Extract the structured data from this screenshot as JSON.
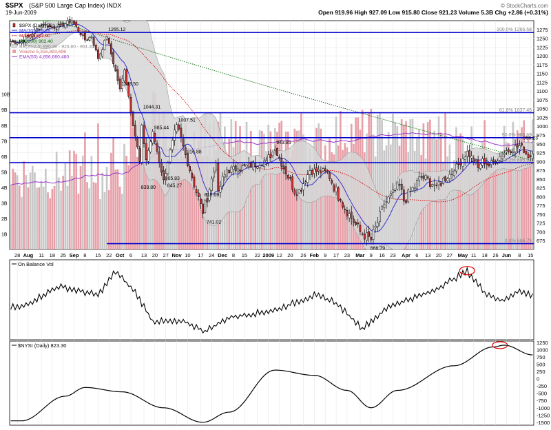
{
  "header": {
    "symbol": "$SPX",
    "description": "(S&P 500 Large Cap Index) INDX",
    "date": "19-Jun-2009",
    "quote": "Open 919.96  High 927.09  Low 915.80  Close 921.23  Volume 5.3B  Chg +2.86 (+0.31%)",
    "credit": "© StockCharts.com",
    "quote_up_color": "#0000ff"
  },
  "legend": [
    {
      "text": "$SPX (Daily) 921.23",
      "color": "#000000",
      "marker": "candle"
    },
    {
      "text": "MA(10) 929.78",
      "color": "#3333cc",
      "marker": "line"
    },
    {
      "text": "MA(50) 897.90",
      "color": "#cc0000",
      "marker": "dotted"
    },
    {
      "text": "MA(200) 902.40",
      "color": "#006600",
      "marker": "dotted"
    },
    {
      "text": "BB(20,2.0) 890.30 - 925.80 - 961.31",
      "color": "#888888",
      "marker": "band"
    },
    {
      "text": "Volume 5,316,893,696",
      "color": "#cc6666",
      "marker": "bar"
    },
    {
      "text": "EMA(50) 4,856,660,480",
      "color": "#9933cc",
      "marker": "line"
    }
  ],
  "colors": {
    "up_candle": "#ffffff",
    "down_candle": "#cc3333",
    "bb_fill": "#d6d6d6",
    "fib_line": "#0000cc",
    "vol_up": "#c8c8c8",
    "vol_down": "#e8a0a8",
    "ema_vol": "#9933cc",
    "ma10": "#3333cc",
    "ma50": "#cc0000",
    "ma200": "#006600",
    "obv": "#000000",
    "nysi": "#000000",
    "highlight": "#dd0000"
  },
  "chart_data": [
    {
      "type": "candlestick",
      "title": "$SPX (Daily) 921.23",
      "ylim": [
        650,
        1300
      ],
      "yticks": [
        675,
        700,
        725,
        750,
        775,
        800,
        825,
        850,
        875,
        900,
        925,
        950,
        975,
        1000,
        1025,
        1050,
        1075,
        1100,
        1125,
        1150,
        1175,
        1200,
        1225,
        1250,
        1275
      ],
      "volume_ticks": [
        "1B",
        "2B",
        "3B",
        "4B",
        "5B",
        "6B",
        "7B",
        "8B",
        "9B",
        "10B"
      ],
      "x_tick_labels": [
        "28",
        "Aug",
        "11",
        "18",
        "25",
        "Sep",
        "8",
        "15",
        "22",
        "Oct",
        "6",
        "13",
        "20",
        "27",
        "Nov",
        "10",
        "17",
        "24",
        "Dec",
        "8",
        "15",
        "22",
        "2009",
        "12",
        "20",
        "26",
        "Feb",
        "9",
        "17",
        "23",
        "Mar",
        "9",
        "16",
        "23",
        "Apr",
        "6",
        "13",
        "20",
        "27",
        "May",
        "11",
        "18",
        "26",
        "Jun",
        "8",
        "15"
      ],
      "anchors": [
        {
          "date": "2008-07-28",
          "close": 1240
        },
        {
          "date": "2008-08-11",
          "close": 1290
        },
        {
          "date": "2008-08-18",
          "close": 1278
        },
        {
          "date": "2008-08-28",
          "close": 1300
        },
        {
          "date": "2008-09-05",
          "close": 1245
        },
        {
          "date": "2008-09-10",
          "close": 1255
        },
        {
          "date": "2008-09-15",
          "close": 1192
        },
        {
          "date": "2008-09-19",
          "close": 1255
        },
        {
          "date": "2008-09-29",
          "close": 1106
        },
        {
          "date": "2008-10-01",
          "close": 1160
        },
        {
          "date": "2008-10-10",
          "close": 900
        },
        {
          "date": "2008-10-13",
          "close": 1003
        },
        {
          "date": "2008-10-15",
          "close": 905
        },
        {
          "date": "2008-10-20",
          "close": 985
        },
        {
          "date": "2008-10-27",
          "close": 848
        },
        {
          "date": "2008-11-04",
          "close": 1005
        },
        {
          "date": "2008-11-10",
          "close": 919
        },
        {
          "date": "2008-11-20",
          "close": 752
        },
        {
          "date": "2008-11-28",
          "close": 896
        },
        {
          "date": "2008-12-01",
          "close": 816
        },
        {
          "date": "2008-12-05",
          "close": 876
        },
        {
          "date": "2008-12-12",
          "close": 879
        },
        {
          "date": "2008-12-31",
          "close": 903
        },
        {
          "date": "2009-01-06",
          "close": 935
        },
        {
          "date": "2009-01-20",
          "close": 805
        },
        {
          "date": "2009-01-28",
          "close": 874
        },
        {
          "date": "2009-02-09",
          "close": 869
        },
        {
          "date": "2009-02-17",
          "close": 789
        },
        {
          "date": "2009-03-02",
          "close": 700
        },
        {
          "date": "2009-03-09",
          "close": 677
        },
        {
          "date": "2009-03-17",
          "close": 778
        },
        {
          "date": "2009-03-26",
          "close": 832
        },
        {
          "date": "2009-03-30",
          "close": 787
        },
        {
          "date": "2009-04-09",
          "close": 856
        },
        {
          "date": "2009-04-20",
          "close": 832
        },
        {
          "date": "2009-04-30",
          "close": 873
        },
        {
          "date": "2009-05-08",
          "close": 929
        },
        {
          "date": "2009-05-15",
          "close": 882
        },
        {
          "date": "2009-05-19",
          "close": 908
        },
        {
          "date": "2009-05-22",
          "close": 887
        },
        {
          "date": "2009-06-03",
          "close": 931
        },
        {
          "date": "2009-06-12",
          "close": 946
        },
        {
          "date": "2009-06-17",
          "close": 911
        },
        {
          "date": "2009-06-19",
          "close": 921.23
        }
      ],
      "price_annotations": [
        {
          "label": "1265.12",
          "date": "2008-09-19",
          "value": 1265.12,
          "pos": "above"
        },
        {
          "label": "1133.50",
          "date": "2008-09-29",
          "value": 1133.5,
          "pos": "below"
        },
        {
          "label": "1044.31",
          "date": "2008-10-13",
          "value": 1044.31,
          "pos": "above"
        },
        {
          "label": "985.44",
          "date": "2008-10-20",
          "value": 985.44,
          "pos": "above"
        },
        {
          "label": "1007.51",
          "date": "2008-11-04",
          "value": 1007.51,
          "pos": "above"
        },
        {
          "label": "916.88",
          "date": "2008-11-10",
          "value": 916.88,
          "pos": "above"
        },
        {
          "label": "839.80",
          "date": "2008-10-10",
          "value": 839.8,
          "pos": "below"
        },
        {
          "label": "865.83",
          "date": "2008-10-27",
          "value": 865.83,
          "pos": "below"
        },
        {
          "label": "845.27",
          "date": "2008-10-28",
          "value": 845.27,
          "pos": "below"
        },
        {
          "label": "818.69",
          "date": "2008-11-20",
          "value": 818.69,
          "pos": "below"
        },
        {
          "label": "741.02",
          "date": "2008-11-21",
          "value": 741.02,
          "pos": "below"
        },
        {
          "label": "943.85",
          "date": "2009-01-06",
          "value": 943.85,
          "pos": "above"
        },
        {
          "label": "666.79",
          "date": "2009-03-06",
          "value": 666.79,
          "pos": "below"
        },
        {
          "label": "956.23",
          "date": "2009-06-12",
          "value": 956.23,
          "pos": "above"
        }
      ],
      "horizontal_lines": [
        {
          "value": 1266.5
        },
        {
          "value": 1038.5
        },
        {
          "value": 967.5
        },
        {
          "value": 896.5
        },
        {
          "value": 666.5
        }
      ],
      "fib_labels": [
        {
          "text": "100.0% 1266.58",
          "value": 1266.58
        },
        {
          "text": "61.8% 1037.45",
          "value": 1037.45
        },
        {
          "text": "50.0% 966.69",
          "value": 966.69
        },
        {
          "text": "38.2% 895.92",
          "value": 895.92
        },
        {
          "text": "0.0% 666.79",
          "value": 666.79
        }
      ]
    },
    {
      "type": "line",
      "title": "On Balance Vol",
      "anchors": [
        {
          "date": "2008-07-28",
          "v": 0.35
        },
        {
          "date": "2008-08-20",
          "v": 0.7
        },
        {
          "date": "2008-09-15",
          "v": 0.55
        },
        {
          "date": "2008-09-25",
          "v": 0.95
        },
        {
          "date": "2008-10-08",
          "v": 0.6
        },
        {
          "date": "2008-10-20",
          "v": 0.12
        },
        {
          "date": "2008-11-10",
          "v": 0.1
        },
        {
          "date": "2008-11-21",
          "v": -0.05
        },
        {
          "date": "2008-12-08",
          "v": 0.18
        },
        {
          "date": "2009-01-06",
          "v": 0.3
        },
        {
          "date": "2009-01-30",
          "v": 0.55
        },
        {
          "date": "2009-02-12",
          "v": 0.45
        },
        {
          "date": "2009-03-03",
          "v": 0.0
        },
        {
          "date": "2009-03-20",
          "v": 0.38
        },
        {
          "date": "2009-04-15",
          "v": 0.6
        },
        {
          "date": "2009-05-08",
          "v": 0.95
        },
        {
          "date": "2009-05-20",
          "v": 0.6
        },
        {
          "date": "2009-06-01",
          "v": 0.45
        },
        {
          "date": "2009-06-10",
          "v": 0.62
        },
        {
          "date": "2009-06-19",
          "v": 0.55
        }
      ],
      "highlight": {
        "date": "2009-05-08",
        "v": 0.95
      }
    },
    {
      "type": "line",
      "title": "$NYSI (Daily) 823.30",
      "ylim": [
        -1600,
        1300
      ],
      "yticks": [
        1250,
        1000,
        750,
        500,
        250,
        0,
        -250,
        -500,
        -750,
        -1000,
        -1250,
        -1500
      ],
      "anchors": [
        {
          "date": "2008-07-28",
          "v": -1450
        },
        {
          "date": "2008-08-25",
          "v": -600
        },
        {
          "date": "2008-09-05",
          "v": -300
        },
        {
          "date": "2008-09-30",
          "v": -450
        },
        {
          "date": "2008-10-27",
          "v": -1000
        },
        {
          "date": "2008-11-20",
          "v": -1500
        },
        {
          "date": "2008-12-08",
          "v": -1150
        },
        {
          "date": "2009-01-06",
          "v": 300
        },
        {
          "date": "2009-01-30",
          "v": 120
        },
        {
          "date": "2009-02-20",
          "v": -400
        },
        {
          "date": "2009-03-09",
          "v": -1000
        },
        {
          "date": "2009-03-25",
          "v": -400
        },
        {
          "date": "2009-04-30",
          "v": 450
        },
        {
          "date": "2009-05-26",
          "v": 1100
        },
        {
          "date": "2009-06-02",
          "v": 1160
        },
        {
          "date": "2009-06-19",
          "v": 823.3
        }
      ],
      "highlight": {
        "date": "2009-05-29",
        "v": 1160
      }
    }
  ]
}
